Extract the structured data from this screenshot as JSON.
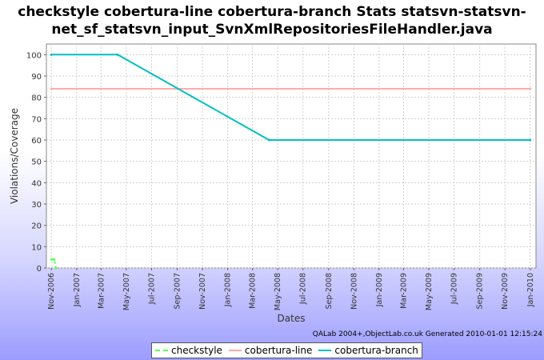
{
  "title": "checkstyle cobertura-line cobertura-branch  Stats statsvn-statsvn-net_sf_statsvn_input_SvnXmlRepositoriesFileHandler.java",
  "title_line1": "checkstyle cobertura-line cobertura-branch  Stats statsvn-statsvn-",
  "title_line2": "net_sf_statsvn_input_SvnXmlRepositoriesFileHandler.java",
  "credit": "QALab 2004+,ObjectLab.co.uk Generated 2010-01-01 12:15:24",
  "chart_data": {
    "type": "line",
    "xlabel": "Dates",
    "ylabel": "Violations/Coverage",
    "ylim": [
      0,
      105
    ],
    "yticks": [
      0,
      10,
      20,
      30,
      40,
      50,
      60,
      70,
      80,
      90,
      100
    ],
    "xlim": [
      "2006-10-20",
      "2010-01-15"
    ],
    "xticks": [
      "Nov-2006",
      "Jan-2007",
      "Mar-2007",
      "May-2007",
      "Jul-2007",
      "Sep-2007",
      "Nov-2007",
      "Jan-2008",
      "Mar-2008",
      "May-2008",
      "Jul-2008",
      "Sep-2008",
      "Nov-2008",
      "Jan-2009",
      "Mar-2009",
      "May-2009",
      "Jul-2009",
      "Sep-2009",
      "Nov-2009",
      "Jan-2010"
    ],
    "tick_dates": [
      "2006-11-01",
      "2007-01-01",
      "2007-03-01",
      "2007-05-01",
      "2007-07-01",
      "2007-09-01",
      "2007-11-01",
      "2008-01-01",
      "2008-03-01",
      "2008-05-01",
      "2008-07-01",
      "2008-09-01",
      "2008-11-01",
      "2009-01-01",
      "2009-03-01",
      "2009-05-01",
      "2009-07-01",
      "2009-09-01",
      "2009-11-01",
      "2010-01-01"
    ],
    "grid": true,
    "legend_position": "bottom",
    "series": [
      {
        "name": "checkstyle",
        "color": "#55ff55",
        "dashed": true,
        "points": [
          [
            "2006-11-01",
            4
          ],
          [
            "2006-11-08",
            4
          ],
          [
            "2006-11-12",
            0
          ]
        ]
      },
      {
        "name": "cobertura-line",
        "color": "#ffaaaa",
        "dashed": false,
        "points": [
          [
            "2006-11-01",
            84
          ],
          [
            "2010-01-01",
            84
          ]
        ]
      },
      {
        "name": "cobertura-branch",
        "color": "#00c0c0",
        "dashed": false,
        "points": [
          [
            "2006-11-01",
            100
          ],
          [
            "2007-04-10",
            100
          ],
          [
            "2008-04-10",
            60
          ],
          [
            "2010-01-01",
            60
          ]
        ]
      }
    ]
  }
}
